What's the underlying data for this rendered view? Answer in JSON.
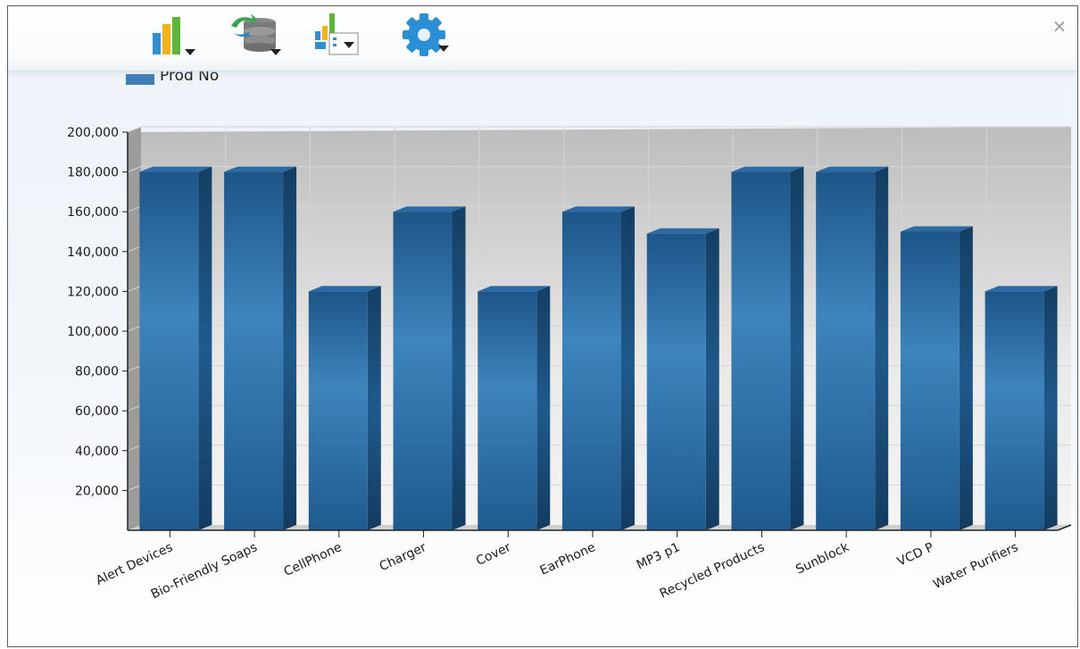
{
  "window": {
    "close_label": "×"
  },
  "toolbar": {
    "buttons": [
      {
        "name": "chart-type-button",
        "icon": "bar-chart-icon"
      },
      {
        "name": "data-source-button",
        "icon": "database-sync-icon"
      },
      {
        "name": "legend-options-button",
        "icon": "chart-legend-icon"
      },
      {
        "name": "settings-button",
        "icon": "gear-icon"
      }
    ]
  },
  "legend": {
    "label": "Prod No",
    "color": "#3e7fb6"
  },
  "chart_data": {
    "type": "bar",
    "categories": [
      "Alert Devices",
      "Bio-Friendly Soaps",
      "CellPhone",
      "Charger",
      "Cover",
      "EarPhone",
      "MP3 p1",
      "Recycled Products",
      "Sunblock",
      "VCD P",
      "Water Purifiers"
    ],
    "series": [
      {
        "name": "Prod No",
        "values": [
          180000,
          180000,
          120000,
          160000,
          120000,
          160000,
          149000,
          180000,
          180000,
          150000,
          120000
        ]
      }
    ],
    "ylim": [
      0,
      200000
    ],
    "yticks": [
      20000,
      40000,
      60000,
      80000,
      100000,
      120000,
      140000,
      160000,
      180000,
      200000
    ],
    "ytick_labels": [
      "20,000",
      "40,000",
      "60,000",
      "80,000",
      "100,000",
      "120,000",
      "140,000",
      "160,000",
      "180,000",
      "200,000"
    ],
    "xlabel": "",
    "ylabel": "",
    "grid": true,
    "legend_position": "top-left",
    "style": "3d",
    "bar_color": "#3e7fb6",
    "bar_dark_color": "#1b4f7a"
  }
}
